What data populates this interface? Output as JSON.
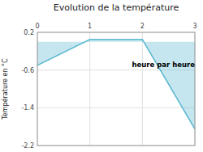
{
  "chart_data": {
    "type": "area",
    "title": "Evolution de la température",
    "y_label": "Température en °C",
    "annotation": "heure par heure",
    "x": [
      0,
      1,
      2,
      3
    ],
    "y": [
      -0.5,
      0.05,
      0.05,
      -1.85
    ],
    "color": "#5ab8d0",
    "xlim": [
      0,
      3
    ],
    "ylim": [
      -2.2,
      0.2
    ],
    "xticks": [
      0,
      1,
      2,
      3
    ],
    "yticks": [
      0.2,
      -0.6,
      -1.4,
      -2.2
    ],
    "grid": true
  }
}
